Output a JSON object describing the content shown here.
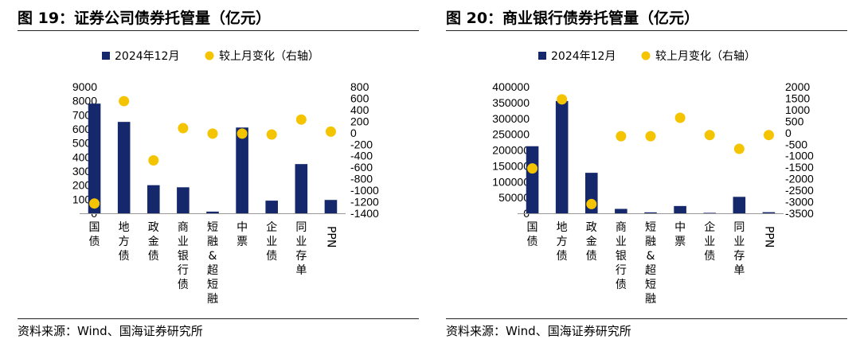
{
  "colors": {
    "bar": "#14286b",
    "dot": "#f5c400"
  },
  "panels": [
    {
      "title": "图 19：证券公司债券托管量（亿元）",
      "source": "资料来源：Wind、国海证券研究所",
      "chart_data": {
        "type": "bar",
        "categories": [
          "国债",
          "地方债",
          "政金债",
          "商业银行债",
          "短融&超短融",
          "中票",
          "企业债",
          "同业存单",
          "PPN"
        ],
        "series": [
          {
            "name": "2024年12月",
            "type": "bar",
            "axis": "left",
            "values": [
              7800,
              6500,
              2000,
              1850,
              120,
              6100,
              900,
              3500,
              950
            ]
          },
          {
            "name": "较上月变化（右轴）",
            "type": "scatter",
            "axis": "right",
            "values": [
              -1230,
              550,
              -480,
              80,
              -15,
              -15,
              -30,
              230,
              20
            ]
          }
        ],
        "ylim_left": [
          0,
          9000
        ],
        "yticks_left": [
          0,
          1000,
          2000,
          3000,
          4000,
          5000,
          6000,
          7000,
          8000,
          9000
        ],
        "ylim_right": [
          -1400,
          800
        ],
        "yticks_right": [
          -1400,
          -1200,
          -1000,
          -800,
          -600,
          -400,
          -200,
          0,
          200,
          400,
          600,
          800
        ],
        "legend": "top-center"
      }
    },
    {
      "title": "图 20：商业银行债券托管量（亿元）",
      "source": "资料来源：Wind、国海证券研究所",
      "chart_data": {
        "type": "bar",
        "categories": [
          "国债",
          "地方债",
          "政金债",
          "商业银行债",
          "短融&超短融",
          "中票",
          "企业债",
          "同业存单",
          "PPN"
        ],
        "series": [
          {
            "name": "2024年12月",
            "type": "bar",
            "axis": "left",
            "values": [
              212000,
              355000,
              128000,
              14000,
              3000,
              23000,
              1500,
              52000,
              3500
            ]
          },
          {
            "name": "较上月变化（右轴）",
            "type": "scatter",
            "axis": "right",
            "values": [
              -1550,
              1450,
              -3100,
              -150,
              -150,
              650,
              -100,
              -700,
              -100
            ]
          }
        ],
        "ylim_left": [
          0,
          400000
        ],
        "yticks_left": [
          0,
          50000,
          100000,
          150000,
          200000,
          250000,
          300000,
          350000,
          400000
        ],
        "ylim_right": [
          -3500,
          2000
        ],
        "yticks_right": [
          -3500,
          -3000,
          -2500,
          -2000,
          -1500,
          -1000,
          -500,
          0,
          500,
          1000,
          1500,
          2000
        ],
        "legend": "top-center"
      }
    }
  ]
}
